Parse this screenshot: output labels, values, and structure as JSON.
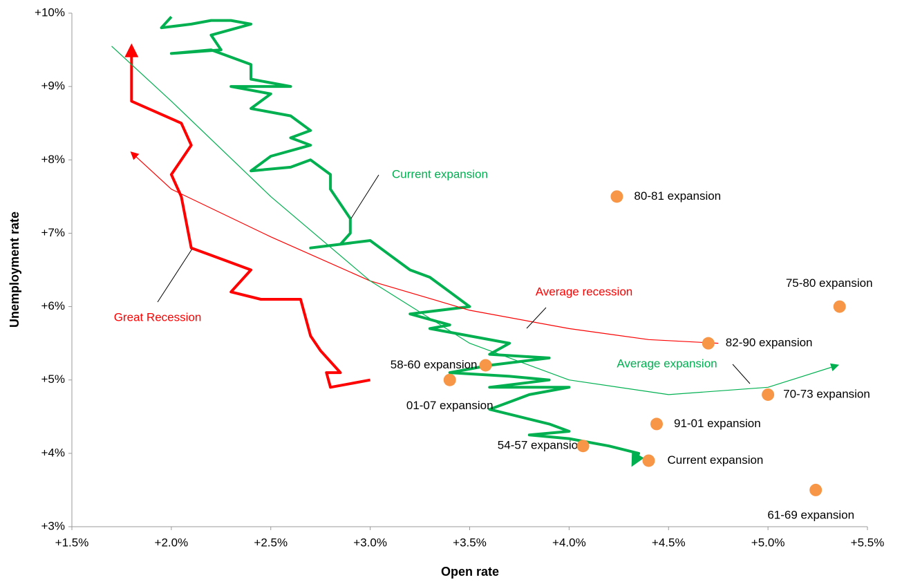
{
  "chart_data": {
    "type": "scatter",
    "xlabel": "Open rate",
    "ylabel": "Unemployment rate",
    "xlim": [
      1.5,
      5.5
    ],
    "ylim": [
      3,
      10
    ],
    "xticks": [
      {
        "value": 1.5,
        "label": "+1.5%"
      },
      {
        "value": 2.0,
        "label": "+2.0%"
      },
      {
        "value": 2.5,
        "label": "+2.5%"
      },
      {
        "value": 3.0,
        "label": "+3.0%"
      },
      {
        "value": 3.5,
        "label": "+3.5%"
      },
      {
        "value": 4.0,
        "label": "+4.0%"
      },
      {
        "value": 4.5,
        "label": "+4.5%"
      },
      {
        "value": 5.0,
        "label": "+5.0%"
      },
      {
        "value": 5.5,
        "label": "+5.5%"
      }
    ],
    "yticks": [
      {
        "value": 3,
        "label": "+3%"
      },
      {
        "value": 4,
        "label": "+4%"
      },
      {
        "value": 5,
        "label": "+5%"
      },
      {
        "value": 6,
        "label": "+6%"
      },
      {
        "value": 7,
        "label": "+7%"
      },
      {
        "value": 8,
        "label": "+8%"
      },
      {
        "value": 9,
        "label": "+9%"
      },
      {
        "value": 10,
        "label": "+10%"
      }
    ],
    "lines": [
      {
        "name": "Current expansion",
        "color": "#00b050",
        "x": [
          2.0,
          1.95,
          2.1,
          2.2,
          2.3,
          2.4,
          2.2,
          2.25,
          2.0,
          2.2,
          2.4,
          2.4,
          2.6,
          2.3,
          2.5,
          2.4,
          2.6,
          2.7,
          2.6,
          2.7,
          2.5,
          2.4,
          2.6,
          2.7,
          2.8,
          2.8,
          2.9,
          2.9,
          2.85,
          2.7,
          3.0,
          3.1,
          3.2,
          3.3,
          3.4,
          3.5,
          3.2,
          3.4,
          3.3,
          3.5,
          3.7,
          3.6,
          3.9,
          3.6,
          3.4,
          3.7,
          3.9,
          3.6,
          4.0,
          3.8,
          3.7,
          3.6,
          3.75,
          3.9,
          4.0,
          3.8,
          4.0,
          4.2,
          4.35,
          4.32
        ],
        "y": [
          9.95,
          9.8,
          9.85,
          9.9,
          9.9,
          9.85,
          9.7,
          9.5,
          9.45,
          9.5,
          9.3,
          9.1,
          9.0,
          9.0,
          8.9,
          8.7,
          8.6,
          8.4,
          8.3,
          8.2,
          8.05,
          7.85,
          7.9,
          8.0,
          7.8,
          7.6,
          7.2,
          7.0,
          6.85,
          6.8,
          6.9,
          6.7,
          6.5,
          6.4,
          6.2,
          6.0,
          5.9,
          5.75,
          5.7,
          5.6,
          5.5,
          5.35,
          5.3,
          5.2,
          5.1,
          5.05,
          5.0,
          4.9,
          4.9,
          4.8,
          4.7,
          4.6,
          4.5,
          4.4,
          4.3,
          4.25,
          4.2,
          4.1,
          4.0,
          3.85
        ]
      },
      {
        "name": "Great Recession",
        "color": "#ff0000",
        "x": [
          3.0,
          2.8,
          2.78,
          2.85,
          2.75,
          2.7,
          2.65,
          2.45,
          2.3,
          2.4,
          2.3,
          2.2,
          2.1,
          2.05,
          2.0,
          2.1,
          2.05,
          1.8,
          1.8,
          1.8
        ],
        "y": [
          5.0,
          4.9,
          5.1,
          5.1,
          5.4,
          5.6,
          6.1,
          6.1,
          6.2,
          6.5,
          6.6,
          6.7,
          6.8,
          7.5,
          7.8,
          8.2,
          8.5,
          8.8,
          9.2,
          9.55
        ]
      },
      {
        "name": "Average recession",
        "color": "#ff0000",
        "x": [
          4.75,
          4.4,
          4.0,
          3.5,
          3.0,
          2.5,
          2.0,
          1.8
        ],
        "y": [
          5.5,
          5.55,
          5.7,
          5.95,
          6.35,
          6.95,
          7.6,
          8.1
        ]
      },
      {
        "name": "Average expansion",
        "color": "#00b050",
        "x": [
          1.7,
          2.0,
          2.5,
          3.0,
          3.5,
          4.0,
          4.5,
          5.0,
          5.35
        ],
        "y": [
          9.55,
          8.8,
          7.5,
          6.35,
          5.5,
          5.0,
          4.8,
          4.9,
          5.2
        ]
      }
    ],
    "points": {
      "color": "#f79646",
      "labels": [
        "80-81 expansion",
        "75-80 expansion",
        "82-90 expansion",
        "58-60 expansion",
        "01-07 expansion",
        "70-73 expansion",
        "91-01 expansion",
        "54-57 expansion",
        "Current expansion",
        "61-69 expansion"
      ],
      "x": [
        4.24,
        5.36,
        4.7,
        3.58,
        3.4,
        5.0,
        4.44,
        4.07,
        4.4,
        5.24
      ],
      "y": [
        7.5,
        6.0,
        5.5,
        5.2,
        5.0,
        4.8,
        4.4,
        4.1,
        3.9,
        3.5
      ]
    }
  }
}
